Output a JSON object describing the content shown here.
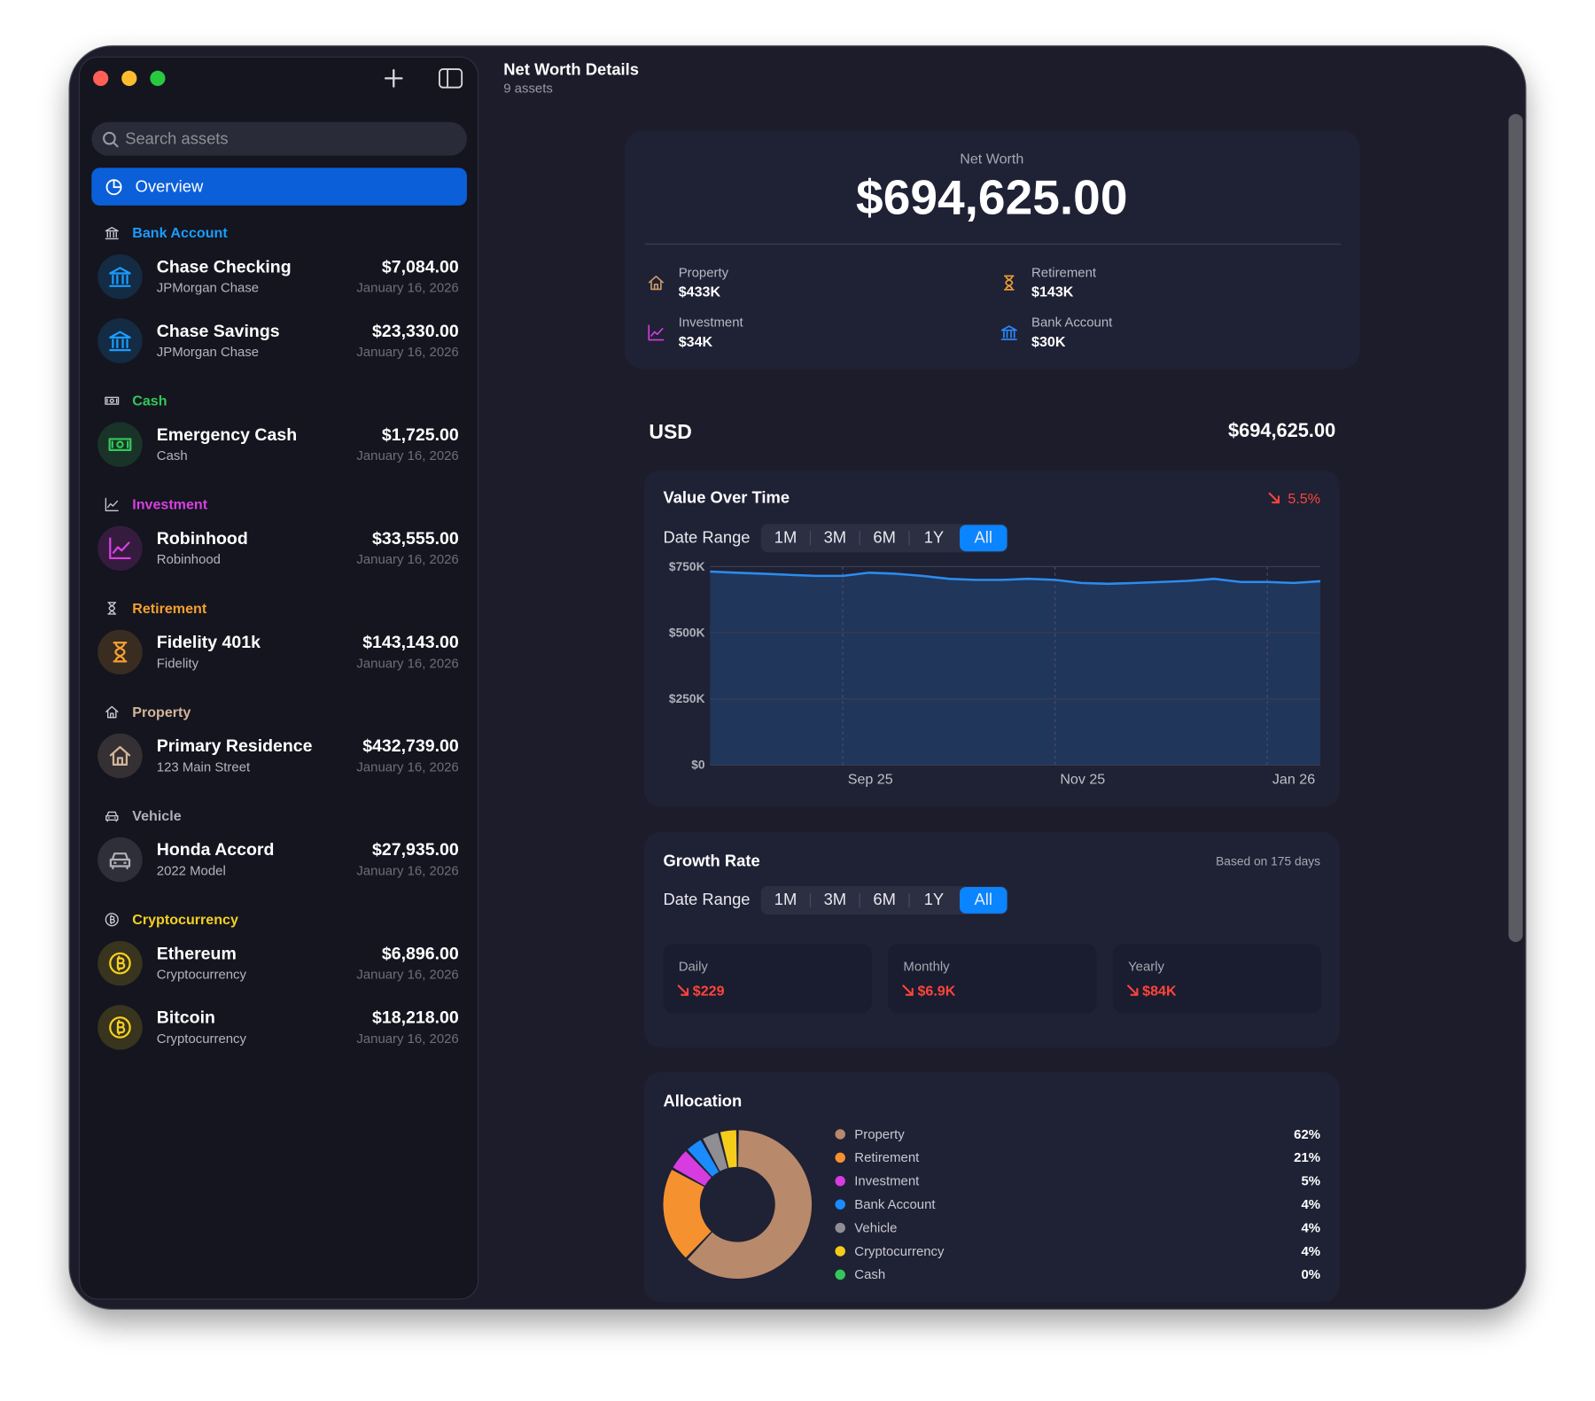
{
  "window": {
    "title": "Net Worth Details",
    "subtitle": "9 assets"
  },
  "sidebar": {
    "search_placeholder": "Search assets",
    "overview_label": "Overview",
    "groups": [
      {
        "name": "Bank Account",
        "color": "#1a9cff",
        "items": [
          {
            "name": "Chase Checking",
            "subtitle": "JPMorgan Chase",
            "value": "$7,084.00",
            "date": "January 16, 2026"
          },
          {
            "name": "Chase Savings",
            "subtitle": "JPMorgan Chase",
            "value": "$23,330.00",
            "date": "January 16, 2026"
          }
        ]
      },
      {
        "name": "Cash",
        "color": "#34c759",
        "items": [
          {
            "name": "Emergency Cash",
            "subtitle": "Cash",
            "value": "$1,725.00",
            "date": "January 16, 2026"
          }
        ]
      },
      {
        "name": "Investment",
        "color": "#d93fe3",
        "items": [
          {
            "name": "Robinhood",
            "subtitle": "Robinhood",
            "value": "$33,555.00",
            "date": "January 16, 2026"
          }
        ]
      },
      {
        "name": "Retirement",
        "color": "#f5a030",
        "items": [
          {
            "name": "Fidelity 401k",
            "subtitle": "Fidelity",
            "value": "$143,143.00",
            "date": "January 16, 2026"
          }
        ]
      },
      {
        "name": "Property",
        "color": "#d4b59a",
        "items": [
          {
            "name": "Primary Residence",
            "subtitle": "123 Main Street",
            "value": "$432,739.00",
            "date": "January 16, 2026"
          }
        ]
      },
      {
        "name": "Vehicle",
        "color": "#b0b0b8",
        "items": [
          {
            "name": "Honda Accord",
            "subtitle": "2022 Model",
            "value": "$27,935.00",
            "date": "January 16, 2026"
          }
        ]
      },
      {
        "name": "Cryptocurrency",
        "color": "#f5d020",
        "items": [
          {
            "name": "Ethereum",
            "subtitle": "Cryptocurrency",
            "value": "$6,896.00",
            "date": "January 16, 2026"
          },
          {
            "name": "Bitcoin",
            "subtitle": "Cryptocurrency",
            "value": "$18,218.00",
            "date": "January 16, 2026"
          }
        ]
      }
    ]
  },
  "summary": {
    "label": "Net Worth",
    "value": "$694,625.00",
    "breakdown": [
      {
        "label": "Property",
        "value": "$433K",
        "color": "#d09a66"
      },
      {
        "label": "Retirement",
        "value": "$143K",
        "color": "#f0a030"
      },
      {
        "label": "Investment",
        "value": "$34K",
        "color": "#d63ce0"
      },
      {
        "label": "Bank Account",
        "value": "$30K",
        "color": "#2a8cff"
      }
    ]
  },
  "currency": {
    "code": "USD",
    "total": "$694,625.00"
  },
  "value_chart": {
    "type": "line",
    "title": "Value Over Time",
    "change": "5.5%",
    "change_color": "#ff453a",
    "date_range": {
      "label": "Date Range",
      "options": [
        "1M",
        "3M",
        "6M",
        "1Y",
        "All"
      ],
      "selected": "All"
    },
    "categories": [
      null,
      null,
      null,
      null,
      null,
      "Sep 25",
      null,
      null,
      null,
      null,
      null,
      null,
      null,
      "Nov 25",
      null,
      null,
      null,
      null,
      null,
      null,
      null,
      "Jan 26",
      null,
      null
    ],
    "values": [
      731000,
      727000,
      723000,
      719000,
      715000,
      715000,
      727000,
      723000,
      715000,
      704000,
      700000,
      700000,
      704000,
      700000,
      688000,
      685000,
      688000,
      692000,
      696000,
      704000,
      692000,
      692000,
      688000,
      694625
    ],
    "color": "#2a8cf0",
    "ylim": [
      0,
      750000
    ],
    "yticks": [
      {
        "value": 0,
        "label": "$0"
      },
      {
        "value": 250000,
        "label": "$250K"
      },
      {
        "value": 500000,
        "label": "$500K"
      },
      {
        "value": 750000,
        "label": "$750K"
      }
    ],
    "grid": true
  },
  "growth": {
    "title": "Growth Rate",
    "note": "Based on 175 days",
    "color": "#ff453a",
    "date_range": {
      "label": "Date Range",
      "options": [
        "1M",
        "3M",
        "6M",
        "1Y",
        "All"
      ],
      "selected": "All"
    },
    "metrics": [
      {
        "label": "Daily",
        "value": "$229"
      },
      {
        "label": "Monthly",
        "value": "$6.9K"
      },
      {
        "label": "Yearly",
        "value": "$84K"
      }
    ]
  },
  "allocation": {
    "type": "pie",
    "title": "Allocation",
    "categories": [
      "Property",
      "Retirement",
      "Investment",
      "Bank Account",
      "Vehicle",
      "Cryptocurrency",
      "Cash"
    ],
    "values": [
      62,
      21,
      5,
      4,
      4,
      4,
      0
    ],
    "value_labels": [
      "62%",
      "21%",
      "5%",
      "4%",
      "4%",
      "4%",
      "0%"
    ],
    "colors": [
      "#b8896a",
      "#f5922f",
      "#d63ce0",
      "#1a8cff",
      "#8e8e93",
      "#f5cc1a",
      "#34c759"
    ]
  }
}
